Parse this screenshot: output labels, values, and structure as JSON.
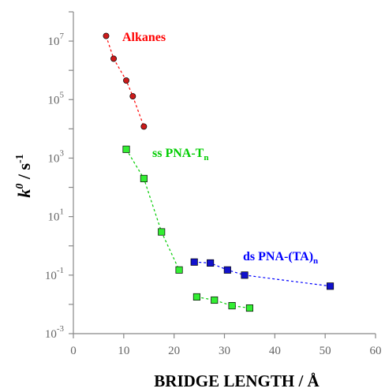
{
  "chart_data": {
    "type": "scatter",
    "xlabel": "BRIDGE LENGTH / Å",
    "ylabel": {
      "base": "k",
      "sup": "0",
      "mid": " / s",
      "sup2": "-1"
    },
    "xlim": [
      0,
      60
    ],
    "ylim_log10": [
      -3,
      8
    ],
    "y_scale": "log",
    "x_ticks": [
      "0",
      "10",
      "20",
      "30",
      "40",
      "50",
      "60"
    ],
    "y_ticks": [
      {
        "exp": 7,
        "base": "10",
        "sup": "7"
      },
      {
        "exp": 5,
        "base": "10",
        "sup": "5"
      },
      {
        "exp": 3,
        "base": "10",
        "sup": "3"
      },
      {
        "exp": 1,
        "base": "10",
        "sup": "1"
      },
      {
        "exp": -1,
        "base": "10",
        "sup": "-1"
      },
      {
        "exp": -3,
        "base": "10",
        "sup": "-3"
      }
    ],
    "grid": false,
    "series": [
      {
        "name": "Alkanes",
        "name_parts": {
          "main": "Alkanes",
          "sub": ""
        },
        "color": "#ff0000",
        "fill": "#cc1a1a",
        "marker": "circle",
        "points": [
          [
            6.5,
            15000000
          ],
          [
            8.0,
            2500000
          ],
          [
            10.5,
            450000
          ],
          [
            11.8,
            130000
          ],
          [
            14.0,
            12000
          ]
        ]
      },
      {
        "name": "ss PNA-Tn",
        "name_parts": {
          "main": "ss PNA-T",
          "sub": "n"
        },
        "color": "#00cc00",
        "fill": "#33ee33",
        "marker": "square",
        "points": [
          [
            10.5,
            2000
          ],
          [
            14.0,
            200
          ],
          [
            17.5,
            3.0
          ],
          [
            21.0,
            0.15
          ]
        ]
      },
      {
        "name": "ds PNA-(TA)n",
        "name_parts": {
          "main": "ds PNA-(TA)",
          "sub": "n"
        },
        "color": "#0000ff",
        "fill": "#1111cc",
        "marker": "square",
        "points": [
          [
            24.0,
            0.28
          ],
          [
            27.2,
            0.26
          ],
          [
            30.6,
            0.15
          ],
          [
            34.0,
            0.1
          ],
          [
            51.0,
            0.042
          ]
        ]
      },
      {
        "name": "",
        "color": "#00cc00",
        "fill": "#33ee33",
        "marker": "square",
        "points": [
          [
            24.5,
            0.018
          ],
          [
            28.0,
            0.014
          ],
          [
            31.5,
            0.009
          ],
          [
            35.0,
            0.0075
          ]
        ]
      }
    ]
  }
}
